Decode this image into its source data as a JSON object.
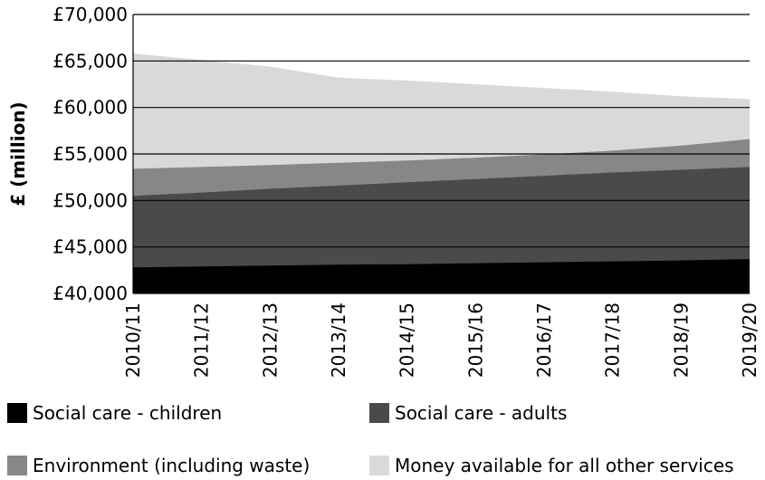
{
  "chart_data": {
    "type": "area",
    "stacked": true,
    "title": "",
    "xlabel": "",
    "ylabel": "£ (million)",
    "ylim": [
      40000,
      70000
    ],
    "yticks": [
      "£40,000",
      "£45,000",
      "£50,000",
      "£55,000",
      "£60,000",
      "£65,000",
      "£70,000"
    ],
    "ytick_values": [
      40000,
      45000,
      50000,
      55000,
      60000,
      65000,
      70000
    ],
    "categories": [
      "2010/11",
      "2011/12",
      "2012/13",
      "2013/14",
      "2014/15",
      "2015/16",
      "2016/17",
      "2017/18",
      "2018/19",
      "2019/20"
    ],
    "grid": "horizontal",
    "legend_position": "bottom",
    "series": [
      {
        "name": "Social care - children",
        "color": "#000000",
        "values": [
          42800,
          42900,
          43000,
          43100,
          43150,
          43250,
          43350,
          43450,
          43550,
          43700
        ]
      },
      {
        "name": "Social care - adults",
        "color": "#4a4a4a",
        "values": [
          50500,
          50850,
          51250,
          51600,
          51950,
          52300,
          52650,
          53000,
          53300,
          53600
        ]
      },
      {
        "name": "Environment (including waste)",
        "color": "#878787",
        "values": [
          53400,
          53600,
          53800,
          54050,
          54300,
          54600,
          54950,
          55350,
          55900,
          56600
        ]
      },
      {
        "name": "Money available for all other services",
        "color": "#d9d9d9",
        "values": [
          65800,
          65100,
          64400,
          63200,
          62900,
          62500,
          62100,
          61700,
          61200,
          60900
        ]
      }
    ]
  }
}
